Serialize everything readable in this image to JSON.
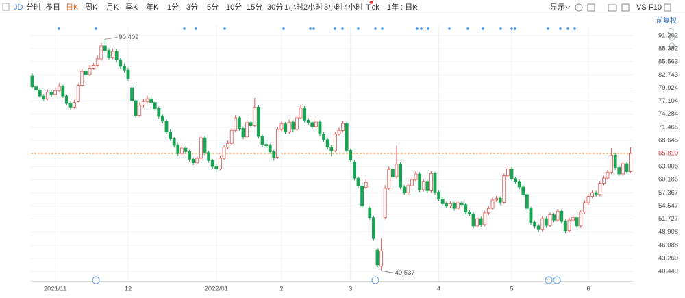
{
  "toolbar": {
    "symbol": "JD",
    "periods": [
      "分时",
      "多日",
      "日K",
      "周K",
      "月K",
      "季K",
      "年K",
      "1分",
      "3分",
      "5分",
      "10分",
      "15分",
      "30分",
      "1小时",
      "2小时",
      "3小时",
      "4小时",
      "Tick"
    ],
    "range": "1年 : 日K",
    "display": "显示",
    "vs": "VS",
    "f10": "F10"
  },
  "chart_data": {
    "type": "candlestick",
    "adjustment": "前复权",
    "up_color": "#e0504b",
    "down_color": "#1aa352",
    "ylim": [
      39.12,
      93.27
    ],
    "yticks": [
      91.202,
      88.382,
      85.563,
      82.743,
      79.924,
      77.104,
      74.284,
      71.465,
      68.645,
      63.006,
      60.186,
      57.367,
      54.547,
      51.727,
      48.908,
      46.088,
      43.269,
      40.449
    ],
    "last_price": {
      "value": 65.81,
      "label": "65.810"
    },
    "categories": [
      null,
      null,
      null,
      null,
      null,
      null,
      "2021/11",
      null,
      null,
      null,
      null,
      null,
      null,
      null,
      null,
      null,
      null,
      null,
      null,
      null,
      null,
      null,
      null,
      null,
      null,
      "12",
      null,
      null,
      null,
      null,
      null,
      null,
      null,
      null,
      null,
      null,
      null,
      null,
      null,
      null,
      null,
      null,
      null,
      null,
      null,
      null,
      null,
      null,
      "2022/01",
      null,
      null,
      null,
      null,
      null,
      null,
      null,
      null,
      null,
      null,
      null,
      null,
      null,
      null,
      null,
      null,
      "2",
      null,
      null,
      null,
      null,
      null,
      null,
      null,
      null,
      null,
      null,
      null,
      null,
      null,
      null,
      null,
      null,
      null,
      "3",
      null,
      null,
      null,
      null,
      null,
      null,
      null,
      null,
      null,
      null,
      null,
      null,
      null,
      null,
      null,
      null,
      null,
      null,
      null,
      null,
      null,
      null,
      "4",
      null,
      null,
      null,
      null,
      null,
      null,
      null,
      null,
      null,
      null,
      null,
      null,
      null,
      null,
      null,
      null,
      null,
      null,
      "5",
      null,
      null,
      null,
      null,
      null,
      null,
      null,
      null,
      null,
      null,
      null,
      null,
      null,
      null,
      null,
      null,
      null,
      null,
      null,
      "6",
      null,
      null,
      null,
      null,
      null,
      null,
      null,
      null,
      null,
      null,
      null
    ],
    "ohlc": [
      [
        82.5,
        83.1,
        79.8,
        80.2
      ],
      [
        80.2,
        80.9,
        79.0,
        79.5
      ],
      [
        79.5,
        80.0,
        77.8,
        78.2
      ],
      [
        78.2,
        78.6,
        77.1,
        77.6
      ],
      [
        77.6,
        79.6,
        77.3,
        79.0
      ],
      [
        79.0,
        79.5,
        78.0,
        78.6
      ],
      [
        78.6,
        79.9,
        78.2,
        79.3
      ],
      [
        79.3,
        81.0,
        79.0,
        80.3
      ],
      [
        80.3,
        80.6,
        77.8,
        78.2
      ],
      [
        78.2,
        78.5,
        76.2,
        76.6
      ],
      [
        76.6,
        77.0,
        75.3,
        75.8
      ],
      [
        75.8,
        77.4,
        75.5,
        76.8
      ],
      [
        77.0,
        81.0,
        76.8,
        80.5
      ],
      [
        80.5,
        84.0,
        80.2,
        83.5
      ],
      [
        83.5,
        84.1,
        82.2,
        82.8
      ],
      [
        82.8,
        84.8,
        82.5,
        84.2
      ],
      [
        84.2,
        85.3,
        83.9,
        84.8
      ],
      [
        84.8,
        86.9,
        84.5,
        86.2
      ],
      [
        86.2,
        89.6,
        85.8,
        89.0
      ],
      [
        89.0,
        90.409,
        87.4,
        88.0
      ],
      [
        88.0,
        88.5,
        86.0,
        86.5
      ],
      [
        86.5,
        88.4,
        86.1,
        87.8
      ],
      [
        87.8,
        88.3,
        85.5,
        86.0
      ],
      [
        86.0,
        86.4,
        84.1,
        84.6
      ],
      [
        84.6,
        85.2,
        83.3,
        83.8
      ],
      [
        83.8,
        84.3,
        81.5,
        82.0
      ],
      [
        80.0,
        80.5,
        76.8,
        77.2
      ],
      [
        77.2,
        77.6,
        73.5,
        74.0
      ],
      [
        74.0,
        76.8,
        73.7,
        76.2
      ],
      [
        76.2,
        77.6,
        75.8,
        77.0
      ],
      [
        77.0,
        78.3,
        76.6,
        77.6
      ],
      [
        77.6,
        78.0,
        76.3,
        76.8
      ],
      [
        76.8,
        77.2,
        75.0,
        75.5
      ],
      [
        75.5,
        75.9,
        73.3,
        73.8
      ],
      [
        73.8,
        74.2,
        72.3,
        72.8
      ],
      [
        72.8,
        73.2,
        70.0,
        70.5
      ],
      [
        70.5,
        71.0,
        68.5,
        69.0
      ],
      [
        69.0,
        69.4,
        67.1,
        67.6
      ],
      [
        67.6,
        68.0,
        65.3,
        65.8
      ],
      [
        65.8,
        67.6,
        65.4,
        67.0
      ],
      [
        67.0,
        67.4,
        65.7,
        66.2
      ],
      [
        66.2,
        66.6,
        64.1,
        64.6
      ],
      [
        64.6,
        65.0,
        63.3,
        63.8
      ],
      [
        63.8,
        65.3,
        63.4,
        64.8
      ],
      [
        64.8,
        69.8,
        64.5,
        69.2
      ],
      [
        69.2,
        69.6,
        65.5,
        66.0
      ],
      [
        66.0,
        66.4,
        63.8,
        64.3
      ],
      [
        64.3,
        64.7,
        62.5,
        63.0
      ],
      [
        63.0,
        63.5,
        61.8,
        62.5
      ],
      [
        62.5,
        65.3,
        62.2,
        64.8
      ],
      [
        64.8,
        67.7,
        64.5,
        67.2
      ],
      [
        67.2,
        68.6,
        66.8,
        68.0
      ],
      [
        68.0,
        71.3,
        67.7,
        70.8
      ],
      [
        70.8,
        74.1,
        70.4,
        73.5
      ],
      [
        73.5,
        73.9,
        70.7,
        71.2
      ],
      [
        71.2,
        71.6,
        68.9,
        69.4
      ],
      [
        69.4,
        73.0,
        69.0,
        72.5
      ],
      [
        72.5,
        72.9,
        71.3,
        71.8
      ],
      [
        71.8,
        77.8,
        71.5,
        75.8
      ],
      [
        75.8,
        76.2,
        69.0,
        69.5
      ],
      [
        69.5,
        69.9,
        67.3,
        67.8
      ],
      [
        67.8,
        68.8,
        67.0,
        67.5
      ],
      [
        67.5,
        67.9,
        65.7,
        66.2
      ],
      [
        66.2,
        66.6,
        64.3,
        65.0
      ],
      [
        65.0,
        71.5,
        64.7,
        71.0
      ],
      [
        71.0,
        72.8,
        70.6,
        72.2
      ],
      [
        72.2,
        72.6,
        70.0,
        70.5
      ],
      [
        70.5,
        73.1,
        70.1,
        72.6
      ],
      [
        72.6,
        73.0,
        70.5,
        71.0
      ],
      [
        71.0,
        74.0,
        70.7,
        73.5
      ],
      [
        73.5,
        76.3,
        73.2,
        75.6
      ],
      [
        75.6,
        76.0,
        72.5,
        73.0
      ],
      [
        73.0,
        73.5,
        72.0,
        72.5
      ],
      [
        72.5,
        72.9,
        71.1,
        71.6
      ],
      [
        71.6,
        73.2,
        71.3,
        72.6
      ],
      [
        72.6,
        73.0,
        69.5,
        70.0
      ],
      [
        70.0,
        70.4,
        68.3,
        68.8
      ],
      [
        68.8,
        69.2,
        66.7,
        67.2
      ],
      [
        67.2,
        67.6,
        65.2,
        66.4
      ],
      [
        66.4,
        70.5,
        66.1,
        70.0
      ],
      [
        70.0,
        71.4,
        69.7,
        70.8
      ],
      [
        70.8,
        72.9,
        70.4,
        72.3
      ],
      [
        72.3,
        72.7,
        66.0,
        66.5
      ],
      [
        66.5,
        66.9,
        64.0,
        64.5
      ],
      [
        64.0,
        64.4,
        60.0,
        60.5
      ],
      [
        60.5,
        60.9,
        58.3,
        58.8
      ],
      [
        58.8,
        59.2,
        54.0,
        54.5
      ],
      [
        58.5,
        60.3,
        58.2,
        59.6
      ],
      [
        54.0,
        54.4,
        51.5,
        52.0
      ],
      [
        52.0,
        52.4,
        47.0,
        47.5
      ],
      [
        45.0,
        45.4,
        41.3,
        41.8
      ],
      [
        41.5,
        47.5,
        40.537,
        44.8
      ],
      [
        52.0,
        59.0,
        51.6,
        58.3
      ],
      [
        58.3,
        63.0,
        57.9,
        62.4
      ],
      [
        62.4,
        62.8,
        60.3,
        60.8
      ],
      [
        60.8,
        67.5,
        60.4,
        63.5
      ],
      [
        63.5,
        63.9,
        58.1,
        58.6
      ],
      [
        58.6,
        59.0,
        56.9,
        57.4
      ],
      [
        57.4,
        59.4,
        57.0,
        58.9
      ],
      [
        58.9,
        60.7,
        58.5,
        60.2
      ],
      [
        60.2,
        62.0,
        59.8,
        61.4
      ],
      [
        61.4,
        61.8,
        57.5,
        58.0
      ],
      [
        58.0,
        60.3,
        57.6,
        59.8
      ],
      [
        59.8,
        60.2,
        57.3,
        57.8
      ],
      [
        57.8,
        62.0,
        57.4,
        61.5
      ],
      [
        61.5,
        61.9,
        57.0,
        57.5
      ],
      [
        57.5,
        57.9,
        55.5,
        56.0
      ],
      [
        56.0,
        56.4,
        54.5,
        55.0
      ],
      [
        55.0,
        55.4,
        54.0,
        54.5
      ],
      [
        54.5,
        55.5,
        54.1,
        55.0
      ],
      [
        55.0,
        55.4,
        53.5,
        54.0
      ],
      [
        54.0,
        55.7,
        53.6,
        55.2
      ],
      [
        55.2,
        55.6,
        54.3,
        54.8
      ],
      [
        54.8,
        55.2,
        52.7,
        53.2
      ],
      [
        53.2,
        53.6,
        52.3,
        52.8
      ],
      [
        52.8,
        53.2,
        49.7,
        50.2
      ],
      [
        50.2,
        52.3,
        49.8,
        51.8
      ],
      [
        51.8,
        52.2,
        50.0,
        50.5
      ],
      [
        50.5,
        53.5,
        50.1,
        53.0
      ],
      [
        53.0,
        54.5,
        52.6,
        54.0
      ],
      [
        54.0,
        56.3,
        53.6,
        55.8
      ],
      [
        55.8,
        56.7,
        55.4,
        56.2
      ],
      [
        56.2,
        56.6,
        54.8,
        55.3
      ],
      [
        55.3,
        61.5,
        55.0,
        61.0
      ],
      [
        61.0,
        63.2,
        60.6,
        62.5
      ],
      [
        62.5,
        62.9,
        59.9,
        60.4
      ],
      [
        60.4,
        60.8,
        59.3,
        59.8
      ],
      [
        59.8,
        60.2,
        58.1,
        58.6
      ],
      [
        58.6,
        59.0,
        56.5,
        57.0
      ],
      [
        57.0,
        57.4,
        53.5,
        54.0
      ],
      [
        54.0,
        54.4,
        50.5,
        51.0
      ],
      [
        51.0,
        51.4,
        49.7,
        50.2
      ],
      [
        50.2,
        50.6,
        48.9,
        49.4
      ],
      [
        49.4,
        52.3,
        49.0,
        51.8
      ],
      [
        51.8,
        52.2,
        49.8,
        50.3
      ],
      [
        50.3,
        53.1,
        49.9,
        52.6
      ],
      [
        52.6,
        53.0,
        51.0,
        51.5
      ],
      [
        51.5,
        53.9,
        51.1,
        53.4
      ],
      [
        53.4,
        53.8,
        50.7,
        51.2
      ],
      [
        51.2,
        51.6,
        48.7,
        49.2
      ],
      [
        49.2,
        52.0,
        48.8,
        51.5
      ],
      [
        51.5,
        52.5,
        51.1,
        52.0
      ],
      [
        52.0,
        52.4,
        49.7,
        50.2
      ],
      [
        50.2,
        53.7,
        49.8,
        53.2
      ],
      [
        53.2,
        55.7,
        52.8,
        55.2
      ],
      [
        55.2,
        57.1,
        54.8,
        56.6
      ],
      [
        56.6,
        57.9,
        56.2,
        57.4
      ],
      [
        57.4,
        57.8,
        56.5,
        57.0
      ],
      [
        57.0,
        59.9,
        56.6,
        59.4
      ],
      [
        59.4,
        61.0,
        59.0,
        60.5
      ],
      [
        60.5,
        62.3,
        60.1,
        61.8
      ],
      [
        61.8,
        67.0,
        61.4,
        65.5
      ],
      [
        65.5,
        65.9,
        62.3,
        62.8
      ],
      [
        62.8,
        63.2,
        60.9,
        61.4
      ],
      [
        61.4,
        64.1,
        61.0,
        63.6
      ],
      [
        63.6,
        64.0,
        61.4,
        61.9
      ],
      [
        61.9,
        67.2,
        61.5,
        65.81
      ]
    ],
    "annotations": [
      {
        "index": 19,
        "label": "90.409"
      },
      {
        "index": 91,
        "label": "40.537"
      }
    ]
  }
}
